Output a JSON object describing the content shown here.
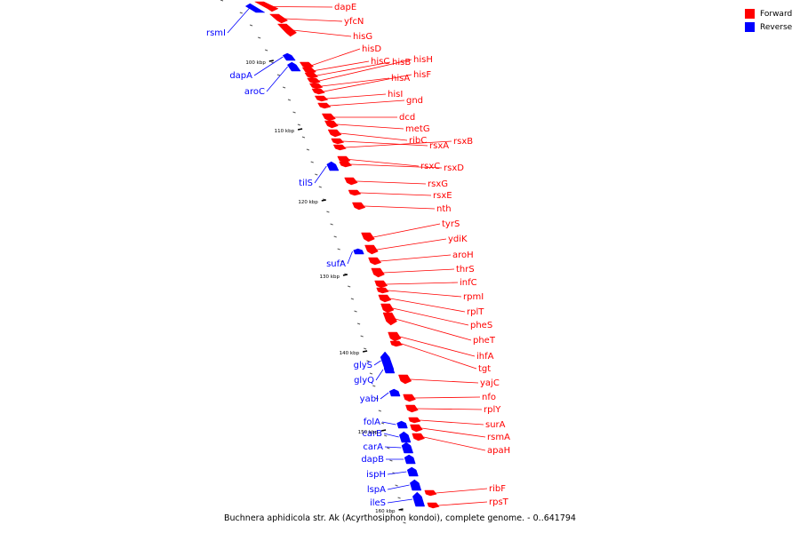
{
  "genome_title": "Buchnera aphidicola str. Ak (Acyrthosiphon kondoi), complete genome. - 0..641794",
  "legend": [
    {
      "label": "Forward",
      "color": "#ff0000"
    },
    {
      "label": "Reverse",
      "color": "#0000ff"
    }
  ],
  "scale_labels": [
    "100 kbp",
    "110 kbp",
    "120 kbp",
    "130 kbp",
    "140 kbp",
    "150 kbp",
    "160 kbp"
  ],
  "forward_genes": [
    "dapE",
    "yfcN",
    "hisG",
    "hisD",
    "hisC",
    "hisB",
    "hisH",
    "hisA",
    "hisF",
    "hisI",
    "gnd",
    "dcd",
    "metG",
    "ribC",
    "rsxA",
    "rsxB",
    "rsxC",
    "rsxD",
    "rsxG",
    "rsxE",
    "nth",
    "tyrS",
    "ydiK",
    "aroH",
    "thrS",
    "infC",
    "rpmI",
    "rplT",
    "pheS",
    "pheT",
    "ihfA",
    "tgt",
    "yajC",
    "nfo",
    "rplY",
    "surA",
    "rsmA",
    "apaH",
    "ribF",
    "rpsT"
  ],
  "reverse_genes": [
    "rsmI",
    "dapA",
    "aroC",
    "tilS",
    "sufA",
    "glyS",
    "glyQ",
    "yabI",
    "folA",
    "carB",
    "carA",
    "dapB",
    "ispH",
    "lspA",
    "ileS"
  ]
}
